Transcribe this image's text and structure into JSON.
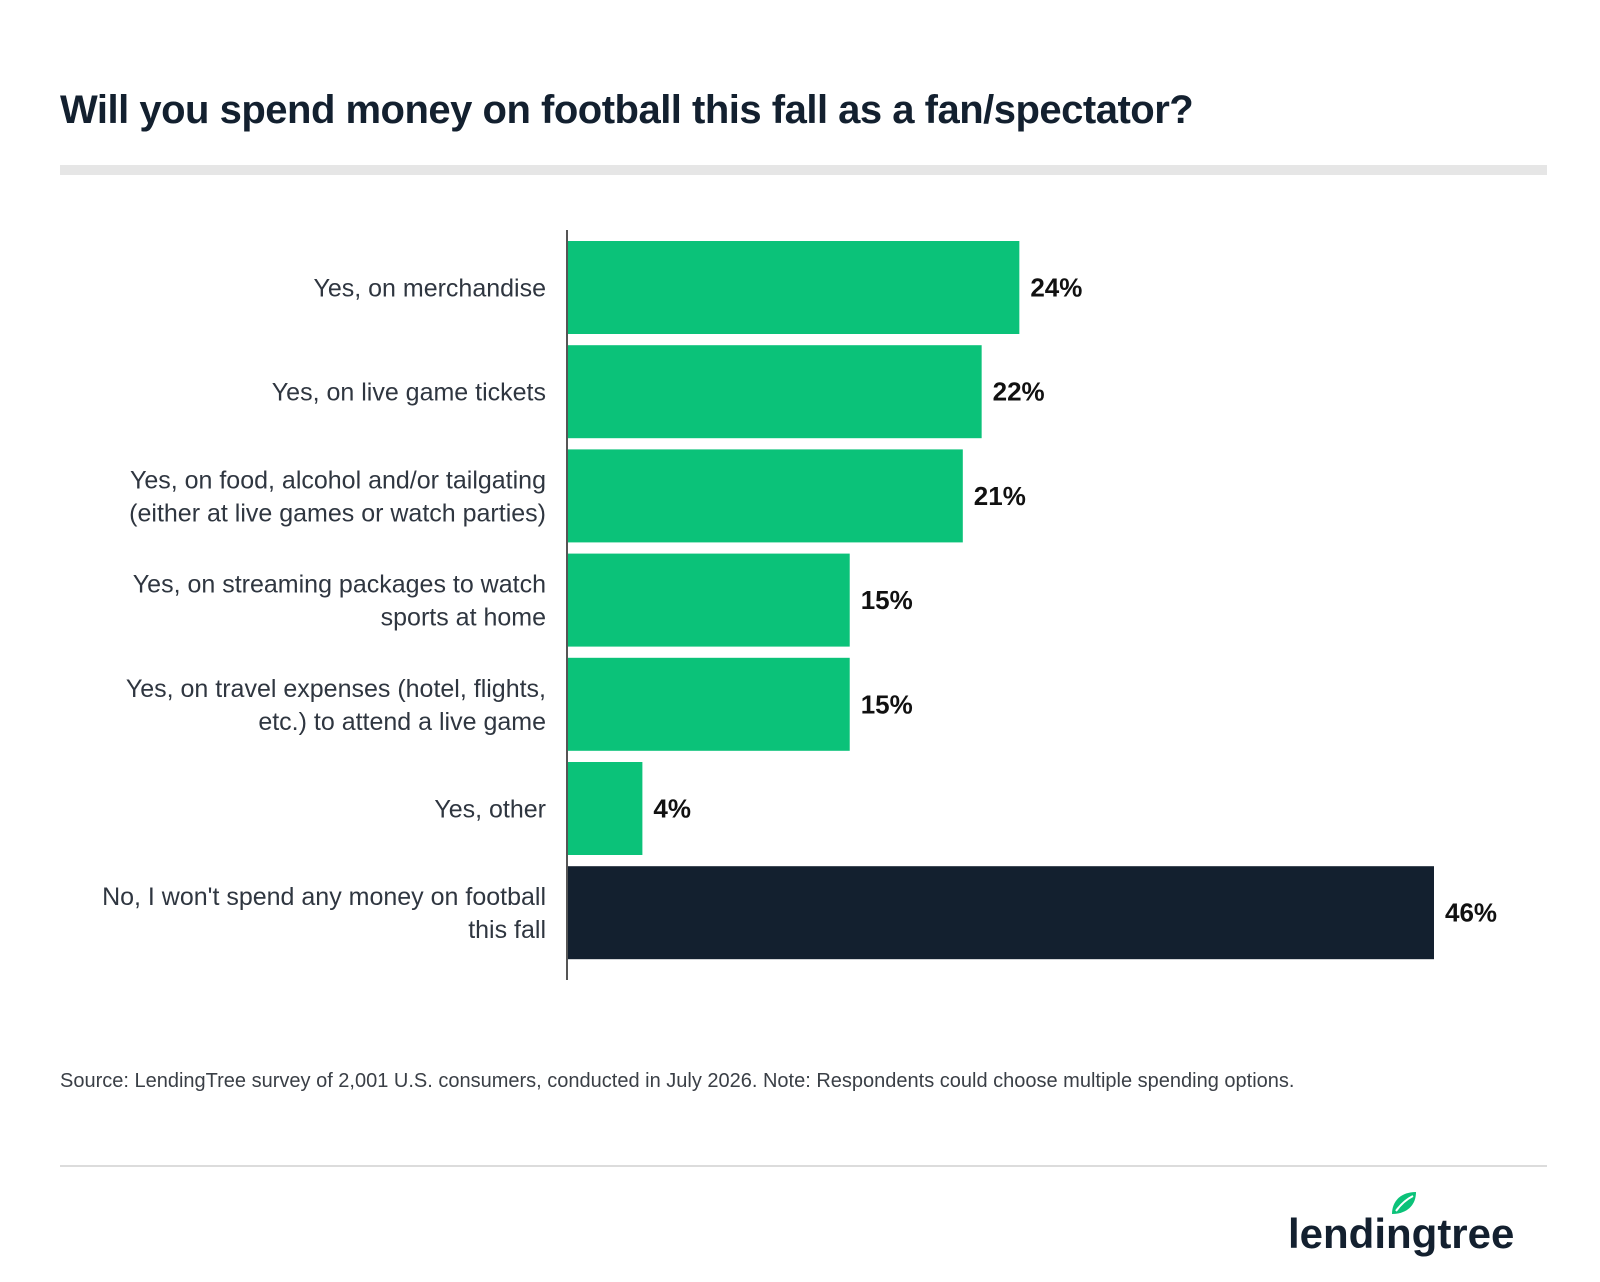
{
  "chart_data": {
    "type": "bar",
    "orientation": "horizontal",
    "title": "Will you spend money on football this fall as a fan/spectator?",
    "categories": [
      [
        "Yes, on merchandise"
      ],
      [
        "Yes, on live game tickets"
      ],
      [
        "Yes, on food, alcohol and/or tailgating",
        "(either at live games or watch parties)"
      ],
      [
        "Yes, on streaming packages to watch",
        "sports at home"
      ],
      [
        "Yes, on travel expenses (hotel, flights,",
        "etc.) to attend a live game"
      ],
      [
        "Yes, other"
      ],
      [
        "No, I won't spend any money on football",
        "this fall"
      ]
    ],
    "values": [
      24,
      22,
      21,
      15,
      15,
      4,
      46
    ],
    "value_labels": [
      "24%",
      "22%",
      "21%",
      "15%",
      "15%",
      "4%",
      "46%"
    ],
    "unit": "%",
    "bar_colors": [
      "#0bc279",
      "#0bc279",
      "#0bc279",
      "#0bc279",
      "#0bc279",
      "#0bc279",
      "#13202f"
    ],
    "xlim": [
      0,
      50
    ],
    "grid": false,
    "xlabel": "",
    "ylabel": ""
  },
  "source": "Source: LendingTree survey of 2,001 U.S. consumers, conducted in July 2026. Note: Respondents could choose multiple spending options.",
  "logo": {
    "text": "lendingtree",
    "icon": "leaf-icon",
    "color": "#13202f",
    "accent": "#0bc279"
  }
}
